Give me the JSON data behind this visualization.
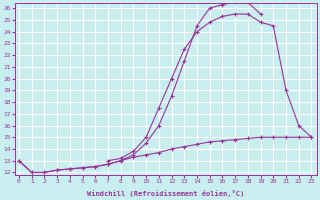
{
  "xlabel": "Windchill (Refroidissement éolien,°C)",
  "background_color": "#c8eef0",
  "grid_color": "#ffffff",
  "line_color": "#993399",
  "x_values": [
    0,
    1,
    2,
    3,
    4,
    5,
    6,
    7,
    8,
    9,
    10,
    11,
    12,
    13,
    14,
    15,
    16,
    17,
    18,
    19,
    20,
    21,
    22,
    23
  ],
  "series1": [
    13.0,
    12.0,
    12.0,
    12.2,
    12.3,
    12.4,
    12.5,
    12.7,
    13.0,
    13.5,
    14.5,
    16.0,
    18.5,
    21.5,
    24.5,
    26.0,
    26.3,
    26.5,
    26.5,
    25.5,
    null,
    null,
    null,
    null
  ],
  "series2": [
    13.0,
    12.0,
    12.0,
    12.2,
    12.3,
    12.4,
    12.5,
    12.7,
    13.0,
    13.3,
    13.5,
    13.7,
    14.0,
    14.2,
    14.4,
    14.6,
    14.7,
    14.8,
    14.9,
    15.0,
    15.0,
    15.0,
    15.0,
    15.0
  ],
  "series3": [
    null,
    null,
    null,
    null,
    null,
    null,
    null,
    13.0,
    13.2,
    13.8,
    15.0,
    17.5,
    20.0,
    22.5,
    24.0,
    24.8,
    25.3,
    25.5,
    25.5,
    24.8,
    24.5,
    19.0,
    16.0,
    15.0
  ],
  "ylim": [
    12,
    26
  ],
  "xlim": [
    0,
    23
  ],
  "yticks": [
    12,
    13,
    14,
    15,
    16,
    17,
    18,
    19,
    20,
    21,
    22,
    23,
    24,
    25,
    26
  ],
  "xticks": [
    0,
    1,
    2,
    3,
    4,
    5,
    6,
    7,
    8,
    9,
    10,
    11,
    12,
    13,
    14,
    15,
    16,
    17,
    18,
    19,
    20,
    21,
    22,
    23
  ]
}
